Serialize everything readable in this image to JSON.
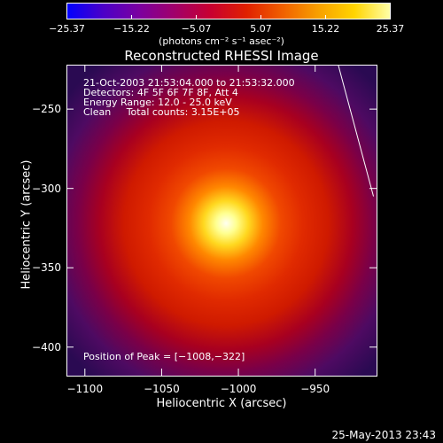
{
  "colors": {
    "background": "#000000",
    "foreground": "#ffffff",
    "limb_line": "#ffffff",
    "colormap": [
      "#0000ff",
      "#4b00c8",
      "#7b00a0",
      "#a1006a",
      "#c80030",
      "#e02000",
      "#f06000",
      "#f8a000",
      "#ffd400",
      "#ffffa8"
    ]
  },
  "colorbar": {
    "tick_labels": [
      "−25.37",
      "−15.22",
      "−5.07",
      "5.07",
      "15.22",
      "25.37"
    ],
    "units": "(photons cm⁻² s⁻¹ asec⁻²)",
    "range": [
      -25.37,
      25.37
    ]
  },
  "title": "Reconstructed RHESSI Image",
  "annotations": {
    "time": "21-Oct-2003 21:53:04.000 to 21:53:32.000",
    "detectors": "Detectors: 4F 5F 6F 7F 8F, Att 4",
    "energy": "Energy Range: 12.0 - 25.0 keV",
    "clean": "Clean     Total counts: 3.15E+05",
    "peak": "Position of Peak = [−1008,−322]"
  },
  "axes": {
    "xlabel": "Heliocentric X (arcsec)",
    "ylabel": "Heliocentric Y (arcsec)",
    "x_range": [
      -1112,
      -910
    ],
    "y_range": [
      -418,
      -222
    ],
    "x_ticks": [
      {
        "value": -1100,
        "label": "−1100"
      },
      {
        "value": -1050,
        "label": "−1050"
      },
      {
        "value": -1000,
        "label": "−1000"
      },
      {
        "value": -950,
        "label": "−950"
      }
    ],
    "y_ticks": [
      {
        "value": -250,
        "label": "−250"
      },
      {
        "value": -300,
        "label": "−300"
      },
      {
        "value": -350,
        "label": "−350"
      },
      {
        "value": -400,
        "label": "−400"
      }
    ]
  },
  "image": {
    "peak": [
      -1008,
      -322
    ],
    "peak_value": 25.37,
    "limb_line": [
      [
        -935,
        -222
      ],
      [
        -912,
        -305
      ]
    ]
  },
  "timestamp": "25-May-2013 23:43"
}
